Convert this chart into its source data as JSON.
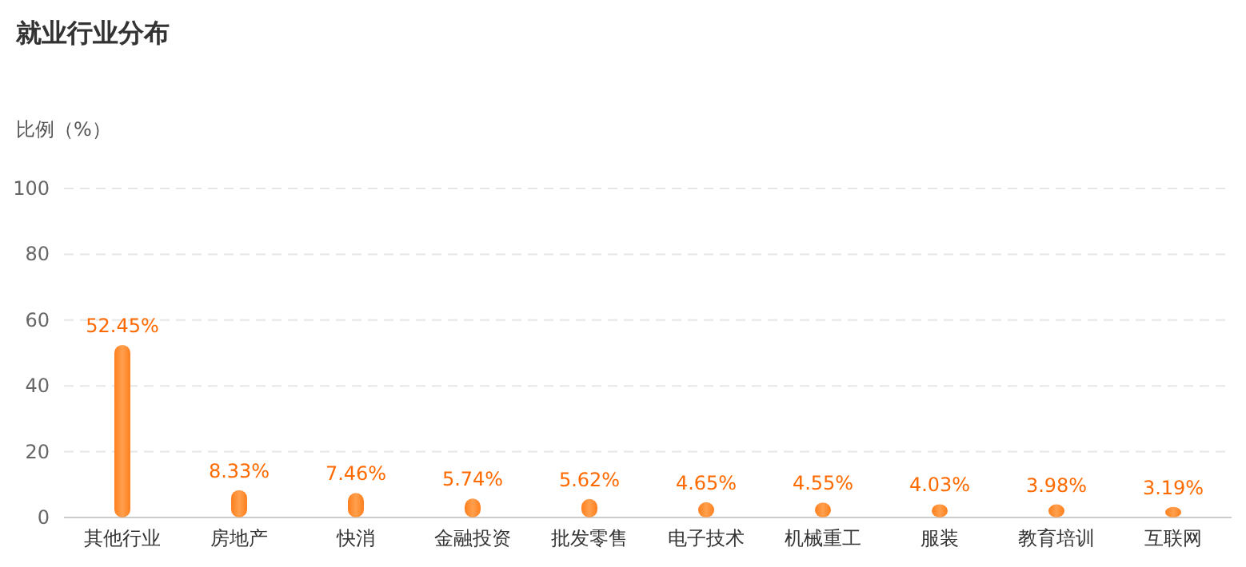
{
  "chart_data": {
    "type": "bar",
    "title": "就业行业分布",
    "ylabel": "比例（%）",
    "categories": [
      "其他行业",
      "房地产",
      "快消",
      "金融投资",
      "批发零售",
      "电子技术",
      "机械重工",
      "服装",
      "教育培训",
      "互联网"
    ],
    "values": [
      52.45,
      8.33,
      7.46,
      5.74,
      5.62,
      4.65,
      4.55,
      4.03,
      3.98,
      3.19
    ],
    "value_labels": [
      "52.45%",
      "8.33%",
      "7.46%",
      "5.74%",
      "5.62%",
      "4.65%",
      "4.55%",
      "4.03%",
      "3.98%",
      "3.19%"
    ],
    "color": "#ff7f1e",
    "ylim": [
      0,
      100
    ],
    "yticks": [
      0,
      20,
      40,
      60,
      80,
      100
    ],
    "grid": "y"
  }
}
